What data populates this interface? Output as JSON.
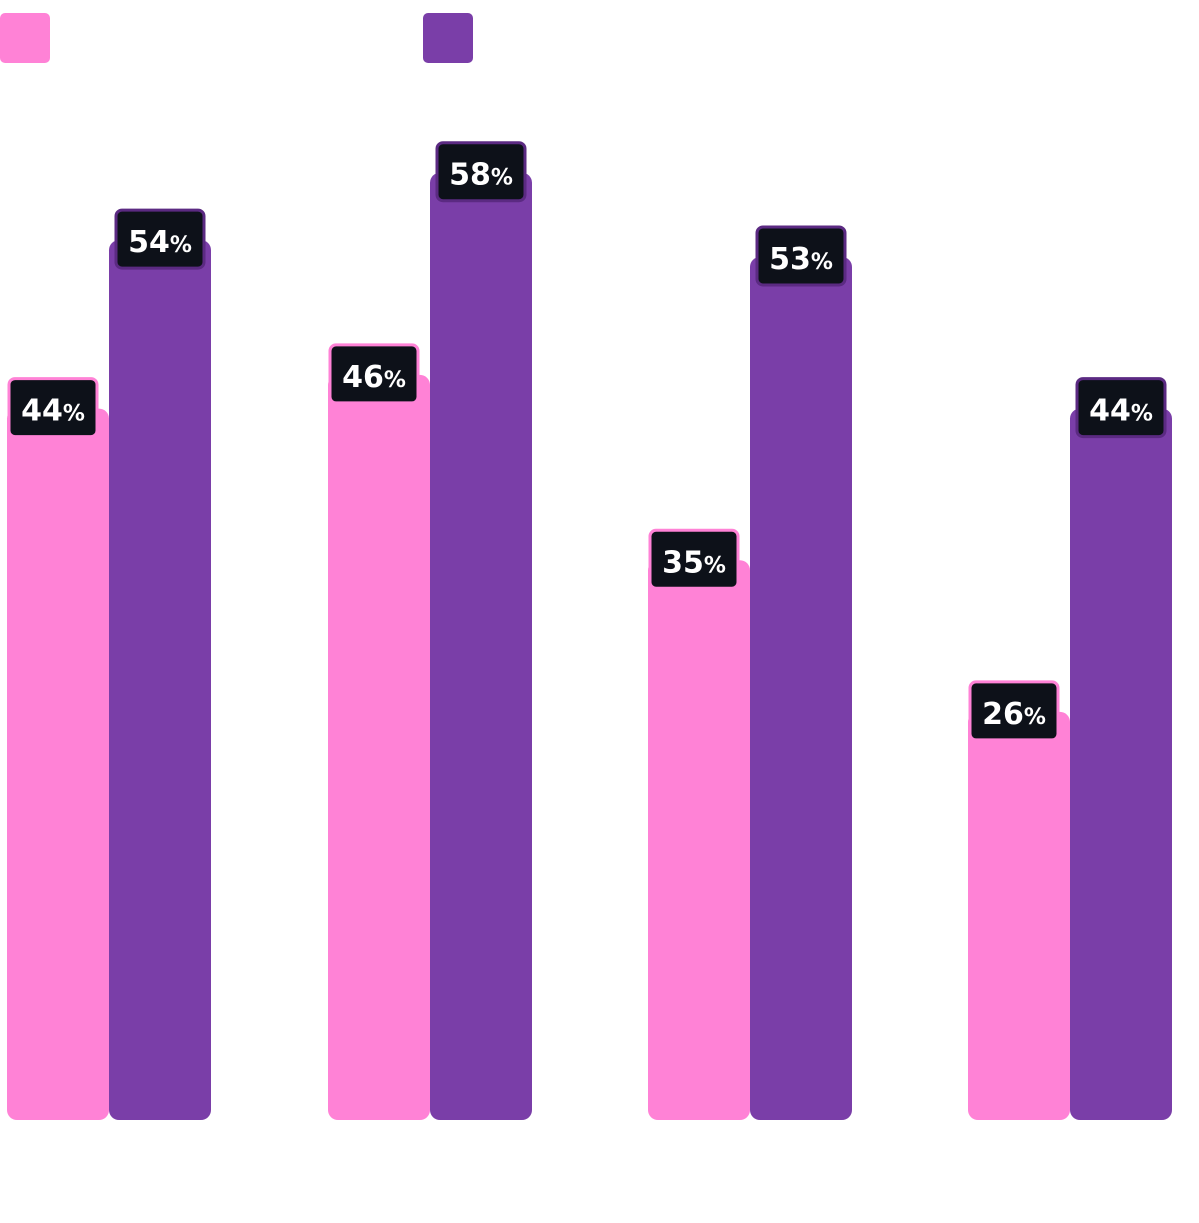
{
  "chart_data": {
    "type": "bar",
    "title": "",
    "xlabel": "",
    "ylabel": "",
    "categories": [
      "",
      "",
      "",
      ""
    ],
    "series": [
      {
        "color": "#ff82d6",
        "border": "#ff82d6",
        "values": [
          44,
          46,
          35,
          26
        ]
      },
      {
        "color": "#7a3ea8",
        "border": "#5b2a82",
        "values": [
          54,
          58,
          53,
          44
        ]
      }
    ],
    "unit": "%",
    "ylim": [
      0,
      70
    ],
    "grid": false,
    "legend": "top-left",
    "label_bg": "#0d1119",
    "label_text_color": "#ffffff"
  }
}
